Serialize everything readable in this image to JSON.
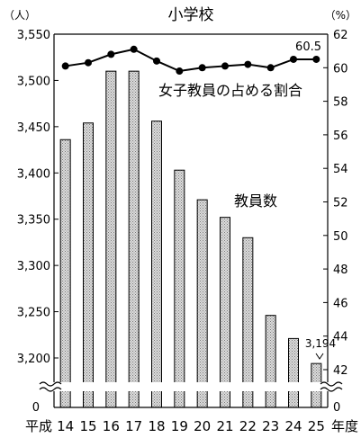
{
  "chart_data": {
    "type": "bar",
    "title": "小学校",
    "left_axis": {
      "unit": "（人）",
      "ylim": [
        3175,
        3550
      ],
      "ticks": [
        "3,550",
        "3,500",
        "3,450",
        "3,400",
        "3,350",
        "3,300",
        "3,250",
        "3,200"
      ],
      "tick_values": [
        3550,
        3500,
        3450,
        3400,
        3350,
        3300,
        3250,
        3200
      ],
      "zero_label": "0"
    },
    "right_axis": {
      "unit": "（%）",
      "ylim": [
        41,
        62
      ],
      "ticks": [
        "62",
        "60",
        "58",
        "56",
        "54",
        "52",
        "50",
        "48",
        "46",
        "44",
        "42"
      ],
      "tick_values": [
        62,
        60,
        58,
        56,
        54,
        52,
        50,
        48,
        46,
        44,
        42
      ],
      "zero_label": "0"
    },
    "x_prefix": "平成",
    "x_suffix": "年度",
    "categories": [
      "14",
      "15",
      "16",
      "17",
      "18",
      "19",
      "20",
      "21",
      "22",
      "23",
      "24",
      "25"
    ],
    "series": [
      {
        "name": "教員数",
        "type": "bar",
        "axis": "left",
        "values": [
          3436,
          3454,
          3510,
          3510,
          3456,
          3403,
          3371,
          3352,
          3330,
          3246,
          3221,
          3194
        ]
      },
      {
        "name": "女子教員の占める割合",
        "type": "line",
        "axis": "right",
        "values": [
          60.1,
          60.3,
          60.8,
          61.1,
          60.4,
          59.8,
          60.0,
          60.1,
          60.2,
          60.0,
          60.5,
          60.5
        ]
      }
    ],
    "data_labels": {
      "last_bar": "3,194",
      "last_point": "60.5"
    },
    "axis_break": true,
    "grid": false,
    "colors": {
      "bar_fill": "#c8c8c8",
      "bar_stroke": "#000000",
      "line": "#000000"
    }
  }
}
